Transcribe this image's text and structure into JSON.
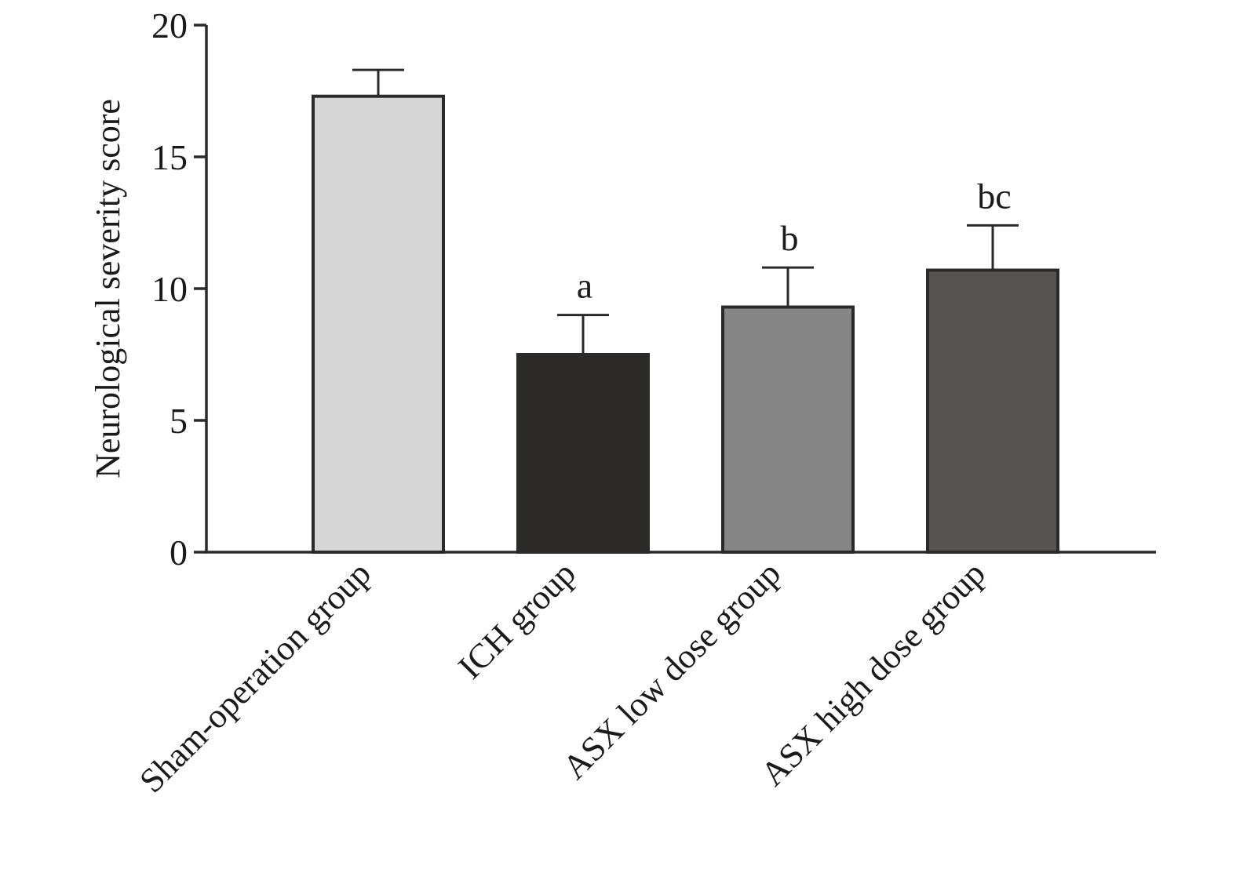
{
  "chart_data": {
    "type": "bar",
    "title": "",
    "xlabel": "",
    "ylabel": "Neurological severity score",
    "ylim": [
      0,
      20
    ],
    "yticks": [
      0,
      5,
      10,
      15,
      20
    ],
    "grid": false,
    "categories": [
      "Sham-operation group",
      "ICH group",
      "ASX low dose group",
      "ASX high dose group"
    ],
    "values": [
      17.3,
      7.5,
      9.3,
      10.7
    ],
    "errors": [
      1.0,
      1.5,
      1.5,
      1.7
    ],
    "significance_labels": [
      "",
      "a",
      "b",
      "bc"
    ],
    "colors": [
      "#d6d6d6",
      "#2c2b29",
      "#878687",
      "#555452"
    ],
    "edge_color": "#2a2a2a"
  }
}
